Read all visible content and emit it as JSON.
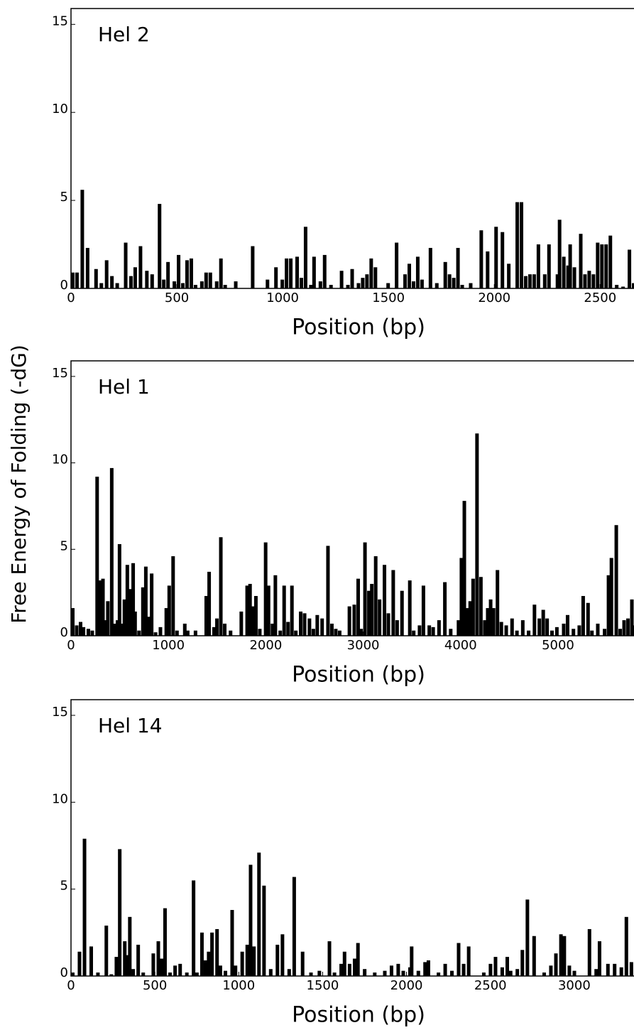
{
  "chart_data": [
    {
      "type": "bar",
      "title": "Hel 2",
      "xlabel": "Position (bp)",
      "color": "#000000",
      "xlim": [
        0,
        2660
      ],
      "ylim": [
        0,
        15.9
      ],
      "xticks": [
        0,
        500,
        1000,
        1500,
        2000,
        2500
      ],
      "yticks": [
        0,
        5,
        10,
        15
      ],
      "x": [
        0,
        20,
        45,
        70,
        110,
        135,
        160,
        185,
        210,
        250,
        275,
        295,
        320,
        350,
        375,
        410,
        430,
        450,
        480,
        500,
        520,
        540,
        560,
        580,
        610,
        630,
        650,
        680,
        700,
        720,
        770,
        850,
        920,
        960,
        990,
        1010,
        1030,
        1060,
        1080,
        1100,
        1125,
        1140,
        1170,
        1190,
        1220,
        1270,
        1300,
        1320,
        1350,
        1370,
        1390,
        1410,
        1430,
        1490,
        1530,
        1570,
        1590,
        1610,
        1630,
        1650,
        1690,
        1720,
        1760,
        1780,
        1800,
        1820,
        1840,
        1880,
        1930,
        1960,
        2000,
        2030,
        2060,
        2100,
        2120,
        2140,
        2160,
        2180,
        2200,
        2230,
        2250,
        2290,
        2300,
        2320,
        2340,
        2350,
        2370,
        2400,
        2420,
        2440,
        2460,
        2480,
        2500,
        2520,
        2540,
        2570,
        2600,
        2630,
        2650
      ],
      "values": [
        0.9,
        0.9,
        5.6,
        2.3,
        1.1,
        0.3,
        1.6,
        0.7,
        0.3,
        2.6,
        0.7,
        1.2,
        2.4,
        1.0,
        0.8,
        4.8,
        0.5,
        1.5,
        0.4,
        1.9,
        0.3,
        1.6,
        1.7,
        0.2,
        0.4,
        0.9,
        0.9,
        0.4,
        1.7,
        0.2,
        0.4,
        2.4,
        0.5,
        1.2,
        0.5,
        1.7,
        1.7,
        1.8,
        0.6,
        3.5,
        0.2,
        1.8,
        0.4,
        1.9,
        0.2,
        1.0,
        0.2,
        1.1,
        0.3,
        0.6,
        0.8,
        1.7,
        1.2,
        0.3,
        2.6,
        0.8,
        1.4,
        0.4,
        1.8,
        0.5,
        2.3,
        0.3,
        1.5,
        0.8,
        0.6,
        2.3,
        0.2,
        0.3,
        3.3,
        2.1,
        3.5,
        3.2,
        1.4,
        4.9,
        4.9,
        0.7,
        0.8,
        0.8,
        2.5,
        0.8,
        2.5,
        0.8,
        3.9,
        1.8,
        1.3,
        2.5,
        1.2,
        3.1,
        0.8,
        1.0,
        0.8,
        2.6,
        2.5,
        2.5,
        3.0,
        0.2,
        0.1,
        2.2,
        0.3
      ]
    },
    {
      "type": "bar",
      "title": "Hel 1",
      "xlabel": "Position (bp)",
      "ylabel": "Free Energy of Folding (-dG)",
      "color": "#000000",
      "xlim": [
        0,
        5780
      ],
      "ylim": [
        0,
        15.9
      ],
      "xticks": [
        0,
        1000,
        2000,
        3000,
        4000,
        5000
      ],
      "yticks": [
        0,
        5,
        10,
        15
      ],
      "x": [
        0,
        40,
        80,
        110,
        160,
        200,
        250,
        280,
        310,
        340,
        360,
        400,
        430,
        460,
        480,
        510,
        530,
        560,
        590,
        620,
        640,
        680,
        720,
        750,
        780,
        810,
        850,
        900,
        960,
        990,
        1030,
        1070,
        1150,
        1180,
        1260,
        1370,
        1400,
        1450,
        1480,
        1520,
        1560,
        1620,
        1730,
        1790,
        1820,
        1850,
        1880,
        1920,
        1980,
        2010,
        2050,
        2080,
        2130,
        2170,
        2210,
        2250,
        2290,
        2340,
        2380,
        2430,
        2470,
        2510,
        2560,
        2620,
        2660,
        2700,
        2740,
        2840,
        2890,
        2930,
        2960,
        3000,
        3040,
        3070,
        3110,
        3150,
        3200,
        3240,
        3290,
        3330,
        3380,
        3460,
        3500,
        3560,
        3600,
        3660,
        3700,
        3760,
        3820,
        3880,
        3960,
        3990,
        4020,
        4050,
        4080,
        4110,
        4150,
        4190,
        4230,
        4260,
        4290,
        4320,
        4360,
        4400,
        4450,
        4510,
        4560,
        4620,
        4680,
        4740,
        4790,
        4830,
        4870,
        4920,
        4970,
        5040,
        5080,
        5140,
        5200,
        5240,
        5290,
        5330,
        5390,
        5460,
        5500,
        5530,
        5580,
        5620,
        5660,
        5700,
        5740,
        5770
      ],
      "values": [
        1.6,
        0.6,
        0.8,
        0.5,
        0.4,
        0.3,
        9.2,
        3.2,
        3.3,
        0.9,
        2.0,
        9.7,
        0.7,
        0.9,
        5.3,
        0.7,
        2.1,
        4.1,
        2.7,
        4.2,
        1.4,
        0.3,
        2.8,
        4.0,
        1.1,
        3.6,
        0.2,
        0.5,
        1.6,
        2.9,
        4.6,
        0.3,
        0.7,
        0.3,
        0.3,
        2.3,
        3.7,
        0.5,
        1.0,
        5.7,
        0.7,
        0.3,
        1.4,
        2.9,
        3.0,
        1.7,
        2.3,
        0.4,
        5.4,
        2.9,
        0.7,
        3.5,
        0.3,
        2.9,
        0.8,
        2.9,
        0.3,
        1.4,
        1.3,
        1.0,
        0.4,
        1.2,
        1.0,
        5.2,
        0.7,
        0.4,
        0.3,
        1.7,
        1.8,
        3.3,
        0.4,
        5.4,
        2.6,
        3.0,
        4.6,
        2.1,
        4.1,
        1.3,
        3.8,
        0.9,
        2.6,
        3.2,
        0.3,
        0.6,
        2.9,
        0.6,
        0.5,
        0.9,
        3.1,
        0.4,
        0.9,
        4.5,
        7.8,
        1.6,
        2.0,
        3.3,
        11.7,
        3.4,
        0.9,
        1.6,
        2.1,
        1.6,
        3.8,
        0.8,
        0.6,
        1.0,
        0.3,
        0.9,
        0.3,
        1.8,
        1.0,
        1.5,
        1.0,
        0.3,
        0.5,
        0.7,
        1.2,
        0.4,
        0.6,
        2.3,
        1.9,
        0.3,
        0.7,
        0.4,
        3.5,
        4.5,
        6.4,
        0.4,
        0.9,
        1.0,
        2.1,
        0.6
      ]
    },
    {
      "type": "bar",
      "title": "Hel 14",
      "xlabel": "Position (bp)",
      "color": "#000000",
      "xlim": [
        0,
        3356
      ],
      "ylim": [
        0,
        15.9
      ],
      "xticks": [
        0,
        500,
        1000,
        1500,
        2000,
        2500,
        3000
      ],
      "yticks": [
        0,
        5,
        10,
        15
      ],
      "x": [
        0,
        40,
        70,
        110,
        150,
        200,
        230,
        260,
        280,
        310,
        330,
        340,
        360,
        390,
        420,
        480,
        510,
        530,
        550,
        580,
        610,
        640,
        680,
        720,
        740,
        770,
        790,
        810,
        830,
        860,
        880,
        910,
        950,
        970,
        1010,
        1040,
        1060,
        1080,
        1110,
        1140,
        1180,
        1220,
        1250,
        1290,
        1320,
        1370,
        1420,
        1470,
        1530,
        1560,
        1600,
        1620,
        1650,
        1680,
        1700,
        1740,
        1800,
        1860,
        1900,
        1940,
        1970,
        2010,
        2020,
        2060,
        2100,
        2120,
        2180,
        2220,
        2260,
        2300,
        2330,
        2360,
        2450,
        2490,
        2520,
        2560,
        2590,
        2610,
        2650,
        2680,
        2710,
        2750,
        2810,
        2850,
        2880,
        2910,
        2930,
        2960,
        2990,
        3080,
        3120,
        3140,
        3190,
        3230,
        3270,
        3300,
        3330
      ],
      "values": [
        0.2,
        1.4,
        7.9,
        1.7,
        0.2,
        2.9,
        0.1,
        1.1,
        7.3,
        2.0,
        1.2,
        3.4,
        0.4,
        1.8,
        0.2,
        1.3,
        2.0,
        1.0,
        3.9,
        0.2,
        0.6,
        0.7,
        0.2,
        5.5,
        0.2,
        2.5,
        0.9,
        1.4,
        2.5,
        2.7,
        0.6,
        0.3,
        3.8,
        0.6,
        1.4,
        1.8,
        6.4,
        1.7,
        7.1,
        5.2,
        0.4,
        1.8,
        2.4,
        0.4,
        5.7,
        1.4,
        0.2,
        0.3,
        2.0,
        0.2,
        0.7,
        1.4,
        0.7,
        1.0,
        1.9,
        0.4,
        0.2,
        0.3,
        0.6,
        0.7,
        0.3,
        0.5,
        1.7,
        0.3,
        0.8,
        0.9,
        0.2,
        0.7,
        0.3,
        1.9,
        0.7,
        1.7,
        0.2,
        0.7,
        1.1,
        0.5,
        1.1,
        0.3,
        0.4,
        1.5,
        4.4,
        2.3,
        0.2,
        0.6,
        1.3,
        2.4,
        2.3,
        0.6,
        0.3,
        2.7,
        0.4,
        2.0,
        0.7,
        0.7,
        0.5,
        3.4,
        0.8
      ]
    }
  ]
}
